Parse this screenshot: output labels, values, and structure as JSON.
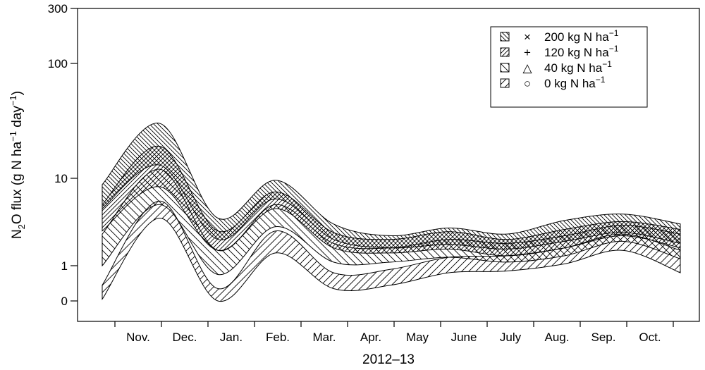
{
  "chart_data": {
    "type": "area",
    "title": "",
    "xlabel": "2012–13",
    "ylabel_parts": [
      "N",
      "2",
      "O flux (g N ha",
      "−1",
      " day",
      "−1",
      ")"
    ],
    "y_scale": "log",
    "ylim": [
      0,
      300
    ],
    "y_ticks": [
      "0",
      "1",
      "10",
      "100",
      "300"
    ],
    "x_ticks": [
      "Nov.",
      "Dec.",
      "Jan.",
      "Feb.",
      "Mar.",
      "Apr.",
      "May",
      "June",
      "July",
      "Aug.",
      "Sep.",
      "Oct."
    ],
    "legend_position": "top-right",
    "series": [
      {
        "name": "200 kg N ha",
        "name_sup": "−1",
        "marker": "×",
        "hatch": "back-diagonal-dense",
        "lower": [
          4.5,
          13,
          2.0,
          5.8,
          2.0,
          1.6,
          1.75,
          1.55,
          1.9,
          2.4,
          1.8
        ],
        "upper": [
          8.5,
          30,
          3.5,
          9.5,
          3.0,
          2.2,
          2.7,
          2.3,
          3.3,
          3.9,
          3.0
        ]
      },
      {
        "name": "120 kg N ha",
        "name_sup": "−1",
        "marker": "+",
        "hatch": "forward-diagonal-dense",
        "lower": [
          2.5,
          8,
          1.5,
          4.5,
          1.6,
          1.4,
          1.55,
          1.3,
          1.6,
          2.2,
          1.6
        ],
        "upper": [
          5.0,
          19,
          2.5,
          7.0,
          2.4,
          2.0,
          2.45,
          2.0,
          2.6,
          3.2,
          2.6
        ]
      },
      {
        "name": "40 kg N ha",
        "name_sup": "−1",
        "marker": "△",
        "hatch": "back-diagonal-sparse",
        "lower": [
          1.0,
          5,
          0.75,
          2.8,
          1.1,
          1.1,
          1.25,
          1.1,
          1.3,
          1.9,
          1.2
        ],
        "upper": [
          2.3,
          12,
          1.5,
          5.0,
          1.8,
          1.6,
          2.0,
          1.8,
          2.2,
          2.9,
          2.3
        ]
      },
      {
        "name": "0 kg N ha",
        "name_sup": "−1",
        "marker": "○",
        "hatch": "forward-diagonal-sparse",
        "lower": [
          0.05,
          3.5,
          0.0,
          1.4,
          0.35,
          0.45,
          0.8,
          0.85,
          1.05,
          1.5,
          0.8
        ],
        "upper": [
          0.45,
          5.5,
          0.35,
          2.5,
          0.8,
          0.9,
          1.25,
          1.3,
          1.6,
          2.3,
          1.5
        ]
      }
    ]
  }
}
